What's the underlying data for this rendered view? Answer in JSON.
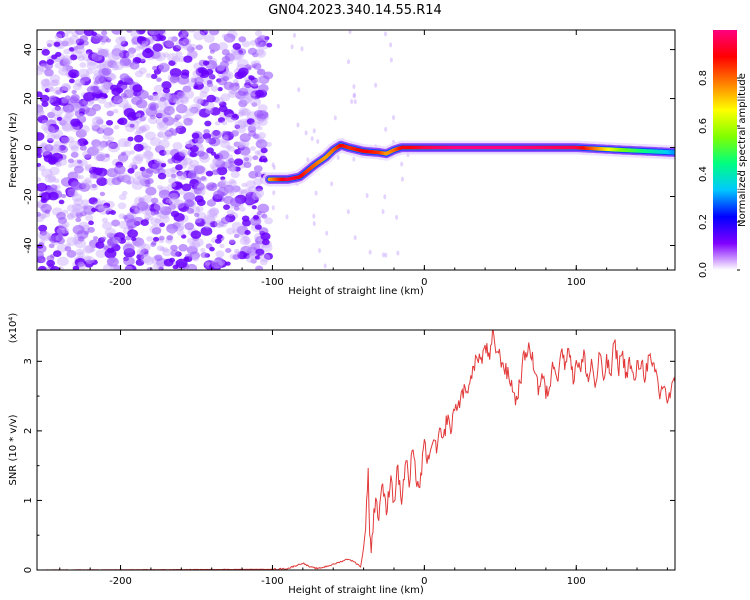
{
  "figure": {
    "title": "GN04.2023.340.14.55.R14"
  },
  "chart_data": [
    {
      "type": "heatmap",
      "xlabel": "Height of straight line (km)",
      "ylabel": "Frequency (Hz)",
      "xlim": [
        -255,
        165
      ],
      "ylim": [
        -50,
        48
      ],
      "xticks": [
        -200,
        -100,
        0,
        100
      ],
      "yticks": [
        -40,
        -20,
        0,
        20,
        40
      ],
      "colorbar": {
        "label": "Normalized spectral amplitude",
        "range": [
          0,
          1
        ],
        "ticks": [
          "0.0",
          "0.2",
          "0.4",
          "0.6",
          "0.8"
        ],
        "colors": [
          "#ffffff",
          "#8000ff",
          "#0000ff",
          "#00c8ff",
          "#00ff80",
          "#80ff00",
          "#ffff00",
          "#ff8000",
          "#ff0000",
          "#ff0080"
        ]
      },
      "noise_region_x": [
        -255,
        -102
      ],
      "ridge": {
        "x": [
          -102,
          -90,
          -82,
          -78,
          -72,
          -65,
          -60,
          -55,
          -50,
          -40,
          -30,
          -25,
          -20,
          -15,
          -10,
          0,
          20,
          60,
          100,
          130,
          165
        ],
        "freq": [
          -13,
          -13,
          -12,
          -10,
          -7,
          -4,
          -1,
          1,
          0,
          -1.5,
          -2,
          -2.5,
          -1,
          0,
          0,
          0,
          0,
          0,
          0,
          -1,
          -2
        ],
        "amplitude": [
          0.75,
          0.95,
          0.9,
          0.85,
          0.8,
          0.75,
          0.8,
          0.9,
          0.85,
          0.9,
          0.85,
          0.75,
          0.8,
          0.9,
          0.9,
          0.95,
          1.0,
          1.0,
          0.95,
          0.55,
          0.3
        ]
      }
    },
    {
      "type": "line",
      "xlabel": "Height of straight line (km)",
      "ylabel": "SNR (10 * v/v)",
      "y_multiplier": "(x10⁴)",
      "xlim": [
        -255,
        165
      ],
      "ylim": [
        0,
        3.45
      ],
      "xticks": [
        -200,
        -100,
        0,
        100
      ],
      "yticks": [
        0,
        1,
        2,
        3
      ],
      "series": [
        {
          "color": "#e23a3a",
          "x": [
            -255,
            -100,
            -90,
            -80,
            -75,
            -70,
            -60,
            -50,
            -45,
            -42,
            -40,
            -38,
            -37,
            -36,
            -35,
            -32,
            -30,
            -28,
            -25,
            -22,
            -20,
            -18,
            -15,
            -12,
            -10,
            -8,
            -5,
            -3,
            0,
            3,
            5,
            8,
            10,
            12,
            15,
            18,
            20,
            22,
            25,
            28,
            30,
            33,
            35,
            38,
            40,
            43,
            45,
            47,
            50,
            53,
            55,
            58,
            60,
            63,
            65,
            68,
            70,
            73,
            75,
            78,
            80,
            83,
            85,
            88,
            90,
            93,
            95,
            98,
            100,
            103,
            105,
            108,
            110,
            113,
            115,
            118,
            120,
            123,
            125,
            128,
            130,
            133,
            135,
            138,
            140,
            143,
            145,
            148,
            150,
            153,
            155,
            158,
            160,
            163,
            165
          ],
          "y": [
            0,
            0.01,
            0.02,
            0.1,
            0.04,
            0.02,
            0.08,
            0.16,
            0.1,
            0.05,
            0.3,
            0.9,
            1.5,
            0.5,
            0.3,
            1.1,
            0.7,
            1.3,
            0.8,
            1.4,
            0.9,
            1.5,
            1.0,
            1.6,
            1.2,
            1.7,
            1.3,
            1.2,
            1.8,
            1.5,
            1.9,
            1.7,
            2.0,
            1.8,
            2.2,
            2.0,
            2.4,
            2.3,
            2.6,
            2.5,
            2.8,
            2.9,
            3.1,
            3.0,
            3.25,
            3.0,
            3.38,
            3.2,
            3.05,
            2.9,
            2.8,
            2.65,
            2.4,
            2.7,
            3.0,
            3.2,
            3.1,
            2.9,
            2.6,
            2.8,
            2.5,
            2.7,
            3.0,
            2.8,
            3.2,
            2.9,
            3.3,
            2.7,
            3.05,
            2.85,
            3.1,
            2.7,
            3.0,
            2.6,
            3.1,
            2.75,
            3.0,
            2.8,
            3.3,
            2.9,
            3.15,
            2.8,
            3.0,
            2.7,
            2.9,
            3.0,
            2.8,
            3.05,
            2.9,
            2.8,
            2.5,
            2.7,
            2.4,
            2.6,
            2.7
          ]
        }
      ]
    }
  ]
}
